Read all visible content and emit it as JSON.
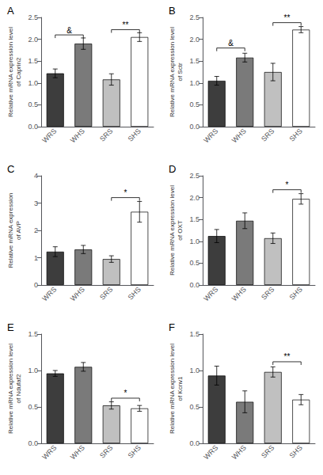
{
  "chart_data": [
    {
      "type": "bar",
      "title": "A",
      "ylabel": "Relative mRNA expression level\nof Caprin2",
      "categories": [
        "WRS",
        "WHS",
        "SRS",
        "SHS"
      ],
      "values": [
        1.22,
        1.9,
        1.08,
        2.05
      ],
      "errors": [
        0.1,
        0.13,
        0.13,
        0.1
      ],
      "colors": [
        "#3d3d3d",
        "#7a7a7a",
        "#c0c0c0",
        "#ffffff"
      ],
      "ylim": [
        0,
        2.5
      ],
      "yticks": [
        {
          "value": 0,
          "label": "0.0"
        },
        0.5,
        {
          "value": 1,
          "label": "1.0"
        },
        1.5,
        {
          "value": 2,
          "label": "2.0"
        },
        2.5
      ],
      "annotations": [
        {
          "text": "&",
          "from": "WRS",
          "to": "WHS",
          "y": 2.1
        },
        {
          "text": "**",
          "from": "SRS",
          "to": "SHS",
          "y": 2.22
        }
      ],
      "grid": false
    },
    {
      "type": "bar",
      "title": "B",
      "ylabel": "Relative mRNA expression level\nof Sctr",
      "categories": [
        "WRS",
        "WHS",
        "SRS",
        "SHS"
      ],
      "values": [
        1.05,
        1.58,
        1.25,
        2.22
      ],
      "errors": [
        0.1,
        0.1,
        0.2,
        0.07
      ],
      "colors": [
        "#3d3d3d",
        "#7a7a7a",
        "#c0c0c0",
        "#ffffff"
      ],
      "ylim": [
        0,
        2.5
      ],
      "yticks": [
        {
          "value": 0,
          "label": "0.0"
        },
        0.5,
        {
          "value": 1,
          "label": "1.0"
        },
        1.5,
        {
          "value": 2,
          "label": "2.0"
        },
        2.5
      ],
      "annotations": [
        {
          "text": "&",
          "from": "WRS",
          "to": "WHS",
          "y": 1.8
        },
        {
          "text": "**",
          "from": "SRS",
          "to": "SHS",
          "y": 2.38
        }
      ],
      "grid": false
    },
    {
      "type": "bar",
      "title": "C",
      "ylabel": "Relative mRNA expression\nof AVP",
      "categories": [
        "WRS",
        "WHS",
        "SRS",
        "SHS"
      ],
      "values": [
        1.22,
        1.3,
        0.95,
        2.68
      ],
      "errors": [
        0.18,
        0.15,
        0.12,
        0.38
      ],
      "colors": [
        "#3d3d3d",
        "#7a7a7a",
        "#c0c0c0",
        "#ffffff"
      ],
      "ylim": [
        0,
        4.0
      ],
      "yticks": [
        0,
        1,
        2,
        3,
        4
      ],
      "annotations": [
        {
          "text": "*",
          "from": "SRS",
          "to": "SHS",
          "y": 3.2
        }
      ],
      "grid": false
    },
    {
      "type": "bar",
      "title": "D",
      "ylabel": "Relative mRNA expression level\nof OXT",
      "categories": [
        "WRS",
        "WHS",
        "SRS",
        "SHS"
      ],
      "values": [
        1.12,
        1.47,
        1.07,
        1.97
      ],
      "errors": [
        0.15,
        0.18,
        0.12,
        0.12
      ],
      "colors": [
        "#3d3d3d",
        "#7a7a7a",
        "#c0c0c0",
        "#ffffff"
      ],
      "ylim": [
        0,
        2.5
      ],
      "yticks": [
        {
          "value": 0,
          "label": "0.0"
        },
        0.5,
        {
          "value": 1,
          "label": "1.0"
        },
        1.5,
        {
          "value": 2,
          "label": "2.0"
        },
        2.5
      ],
      "annotations": [
        {
          "text": "*",
          "from": "SRS",
          "to": "SHS",
          "y": 2.18
        }
      ],
      "grid": false
    },
    {
      "type": "bar",
      "title": "E",
      "ylabel": "Relative mRNA expression level\nof Ndufaf2",
      "categories": [
        "WRS",
        "WHS",
        "SRS",
        "SHS"
      ],
      "values": [
        0.96,
        1.05,
        0.52,
        0.48
      ],
      "errors": [
        0.04,
        0.06,
        0.05,
        0.04
      ],
      "colors": [
        "#3d3d3d",
        "#7a7a7a",
        "#c0c0c0",
        "#ffffff"
      ],
      "ylim": [
        0,
        1.5
      ],
      "yticks": [
        {
          "value": 0,
          "label": "0.0"
        },
        0.5,
        {
          "value": 1,
          "label": "1.0"
        },
        1.5
      ],
      "annotations": [
        {
          "text": "*",
          "from": "SRS",
          "to": "SHS",
          "y": 0.62
        }
      ],
      "grid": false
    },
    {
      "type": "bar",
      "title": "F",
      "ylabel": "Relative mRNA expression level\nof Kcnv1",
      "categories": [
        "WRS",
        "WHS",
        "SRS",
        "SHS"
      ],
      "values": [
        0.93,
        0.57,
        0.98,
        0.6
      ],
      "errors": [
        0.13,
        0.15,
        0.07,
        0.07
      ],
      "colors": [
        "#3d3d3d",
        "#7a7a7a",
        "#c0c0c0",
        "#ffffff"
      ],
      "ylim": [
        0,
        1.5
      ],
      "yticks": [
        {
          "value": 0,
          "label": "0.0"
        },
        0.5,
        {
          "value": 1,
          "label": "1.0"
        },
        1.5
      ],
      "annotations": [
        {
          "text": "**",
          "from": "SRS",
          "to": "SHS",
          "y": 1.12
        }
      ],
      "grid": false
    }
  ]
}
